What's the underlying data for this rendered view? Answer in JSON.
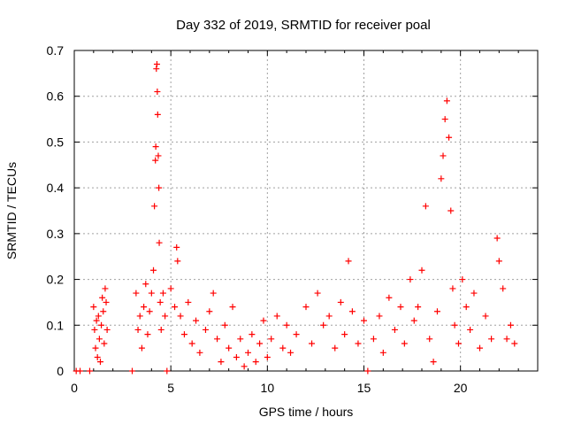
{
  "chart_data": {
    "type": "scatter",
    "title": "Day 332 of 2019, SRMTID for receiver poal",
    "xlabel": "GPS time / hours",
    "ylabel": "SRMTID / TECUs",
    "xlim": [
      0,
      24
    ],
    "ylim": [
      0,
      0.7
    ],
    "xticks": [
      0,
      5,
      10,
      15,
      20
    ],
    "yticks": [
      0,
      0.1,
      0.2,
      0.3,
      0.4,
      0.5,
      0.6,
      0.7
    ],
    "xtick_labels": [
      "0",
      "5",
      "10",
      "15",
      "20"
    ],
    "ytick_labels": [
      "0",
      "0.1",
      "0.2",
      "0.3",
      "0.4",
      "0.5",
      "0.6",
      "0.7"
    ],
    "grid": true,
    "marker": "+",
    "color": "#ff0000",
    "series": [
      {
        "name": "SRMTID",
        "points": [
          [
            0.1,
            0
          ],
          [
            0.3,
            0
          ],
          [
            0.8,
            0
          ],
          [
            1.0,
            0.14
          ],
          [
            1.05,
            0.09
          ],
          [
            1.1,
            0.05
          ],
          [
            1.15,
            0.11
          ],
          [
            1.2,
            0.03
          ],
          [
            1.25,
            0.12
          ],
          [
            1.3,
            0.07
          ],
          [
            1.35,
            0.02
          ],
          [
            1.4,
            0.1
          ],
          [
            1.45,
            0.16
          ],
          [
            1.5,
            0.13
          ],
          [
            1.55,
            0.06
          ],
          [
            1.6,
            0.18
          ],
          [
            1.65,
            0.15
          ],
          [
            1.7,
            0.09
          ],
          [
            3.0,
            0
          ],
          [
            3.2,
            0.17
          ],
          [
            3.3,
            0.09
          ],
          [
            3.4,
            0.12
          ],
          [
            3.5,
            0.05
          ],
          [
            3.6,
            0.14
          ],
          [
            3.7,
            0.19
          ],
          [
            3.8,
            0.08
          ],
          [
            3.9,
            0.13
          ],
          [
            4.0,
            0.17
          ],
          [
            4.1,
            0.22
          ],
          [
            4.15,
            0.36
          ],
          [
            4.2,
            0.46
          ],
          [
            4.22,
            0.49
          ],
          [
            4.25,
            0.66
          ],
          [
            4.28,
            0.67
          ],
          [
            4.3,
            0.61
          ],
          [
            4.32,
            0.56
          ],
          [
            4.35,
            0.47
          ],
          [
            4.38,
            0.4
          ],
          [
            4.4,
            0.28
          ],
          [
            4.45,
            0.15
          ],
          [
            4.5,
            0.09
          ],
          [
            4.6,
            0.17
          ],
          [
            4.7,
            0.12
          ],
          [
            4.8,
            0
          ],
          [
            5.0,
            0.18
          ],
          [
            5.2,
            0.14
          ],
          [
            5.3,
            0.27
          ],
          [
            5.35,
            0.24
          ],
          [
            5.5,
            0.12
          ],
          [
            5.7,
            0.08
          ],
          [
            5.9,
            0.15
          ],
          [
            6.1,
            0.06
          ],
          [
            6.3,
            0.11
          ],
          [
            6.5,
            0.04
          ],
          [
            6.8,
            0.09
          ],
          [
            7.0,
            0.13
          ],
          [
            7.2,
            0.17
          ],
          [
            7.4,
            0.07
          ],
          [
            7.6,
            0.02
          ],
          [
            7.8,
            0.1
          ],
          [
            8.0,
            0.05
          ],
          [
            8.2,
            0.14
          ],
          [
            8.4,
            0.03
          ],
          [
            8.6,
            0.07
          ],
          [
            8.8,
            0.01
          ],
          [
            9.0,
            0.04
          ],
          [
            9.2,
            0.08
          ],
          [
            9.4,
            0.02
          ],
          [
            9.6,
            0.06
          ],
          [
            9.8,
            0.11
          ],
          [
            10.0,
            0.03
          ],
          [
            10.2,
            0.07
          ],
          [
            10.5,
            0.12
          ],
          [
            10.8,
            0.05
          ],
          [
            11.0,
            0.1
          ],
          [
            11.2,
            0.04
          ],
          [
            11.5,
            0.08
          ],
          [
            12.0,
            0.14
          ],
          [
            12.3,
            0.06
          ],
          [
            12.6,
            0.17
          ],
          [
            12.9,
            0.1
          ],
          [
            13.2,
            0.12
          ],
          [
            13.5,
            0.05
          ],
          [
            13.8,
            0.15
          ],
          [
            14.0,
            0.08
          ],
          [
            14.2,
            0.24
          ],
          [
            14.4,
            0.13
          ],
          [
            14.7,
            0.06
          ],
          [
            15.0,
            0.11
          ],
          [
            15.2,
            0
          ],
          [
            15.5,
            0.07
          ],
          [
            15.8,
            0.12
          ],
          [
            16.0,
            0.04
          ],
          [
            16.3,
            0.16
          ],
          [
            16.6,
            0.09
          ],
          [
            16.9,
            0.14
          ],
          [
            17.1,
            0.06
          ],
          [
            17.4,
            0.2
          ],
          [
            17.6,
            0.11
          ],
          [
            17.8,
            0.14
          ],
          [
            18.0,
            0.22
          ],
          [
            18.2,
            0.36
          ],
          [
            18.4,
            0.07
          ],
          [
            18.6,
            0.02
          ],
          [
            18.8,
            0.13
          ],
          [
            19.0,
            0.42
          ],
          [
            19.1,
            0.47
          ],
          [
            19.2,
            0.55
          ],
          [
            19.3,
            0.59
          ],
          [
            19.4,
            0.51
          ],
          [
            19.5,
            0.35
          ],
          [
            19.6,
            0.18
          ],
          [
            19.7,
            0.1
          ],
          [
            19.9,
            0.06
          ],
          [
            20.1,
            0.2
          ],
          [
            20.3,
            0.14
          ],
          [
            20.5,
            0.09
          ],
          [
            20.7,
            0.17
          ],
          [
            21.0,
            0.05
          ],
          [
            21.3,
            0.12
          ],
          [
            21.6,
            0.07
          ],
          [
            21.9,
            0.29
          ],
          [
            22.0,
            0.24
          ],
          [
            22.2,
            0.18
          ],
          [
            22.4,
            0.07
          ],
          [
            22.6,
            0.1
          ],
          [
            22.8,
            0.06
          ]
        ]
      }
    ]
  }
}
